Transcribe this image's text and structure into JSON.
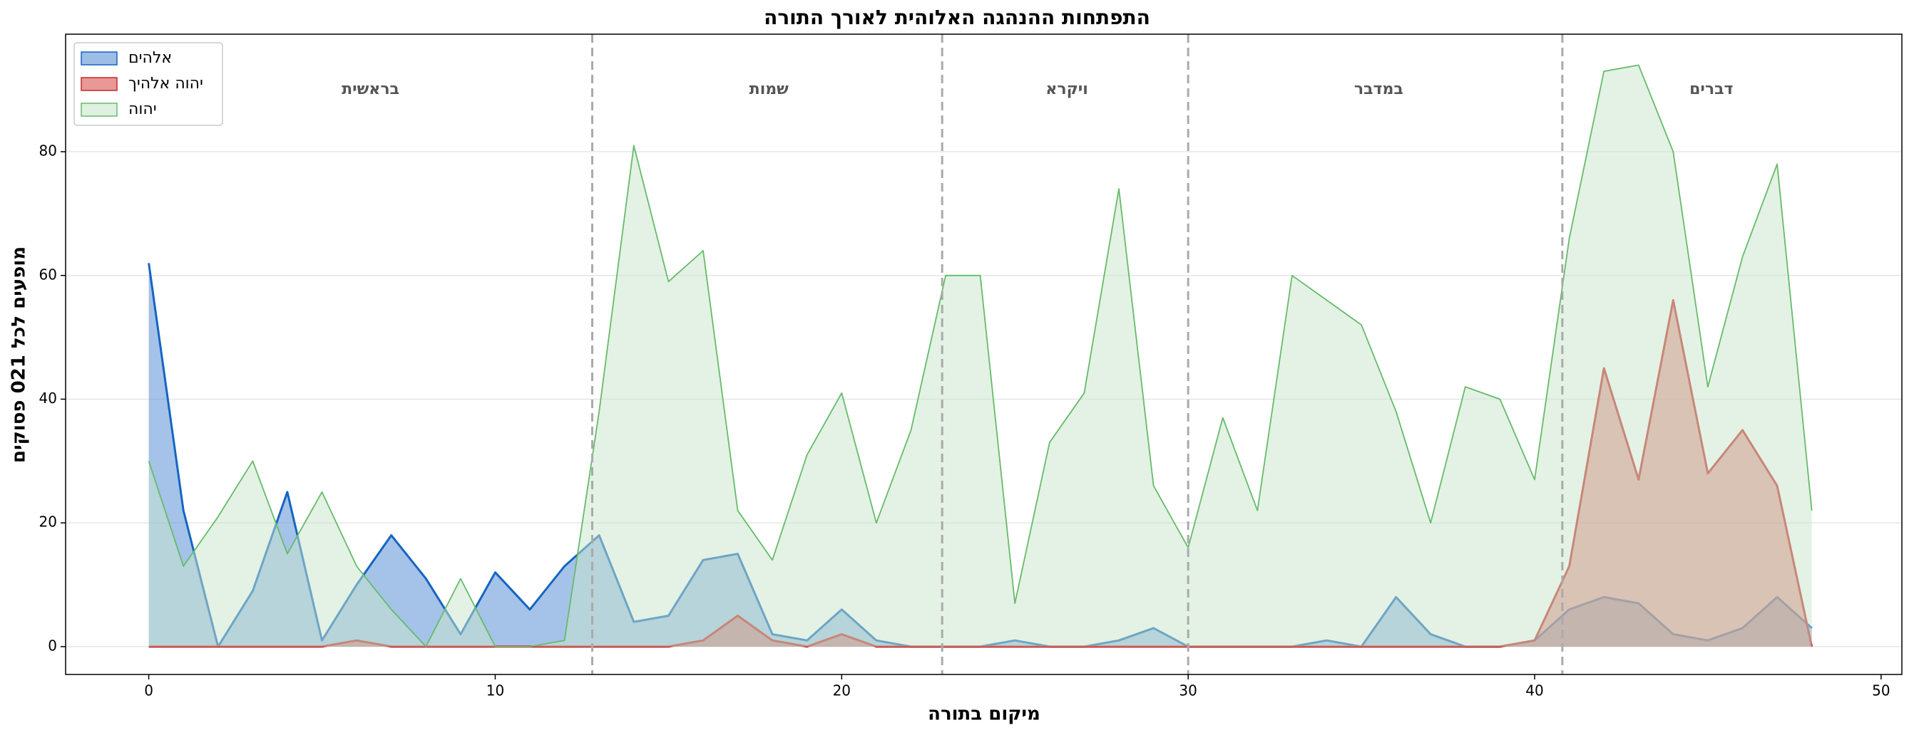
{
  "chart_data": {
    "type": "area",
    "title": "התפתחות ההנהגה האלוהית לאורך התורה",
    "xlabel": "מיקום בתורה",
    "ylabel": "מופעים לכל 021 פסוקים",
    "x": [
      0,
      1,
      2,
      3,
      4,
      5,
      6,
      7,
      8,
      9,
      10,
      11,
      12,
      13,
      14,
      15,
      16,
      17,
      18,
      19,
      20,
      21,
      22,
      23,
      24,
      25,
      26,
      27,
      28,
      29,
      30,
      31,
      32,
      33,
      34,
      35,
      36,
      37,
      38,
      39,
      40,
      41,
      42,
      43,
      44,
      45,
      46,
      47,
      48
    ],
    "series": [
      {
        "name": "אלהים",
        "color": "#1565c0",
        "fill": "#5b8fd6",
        "values": [
          62,
          22,
          0,
          9,
          25,
          1,
          10,
          18,
          11,
          2,
          12,
          6,
          13,
          18,
          4,
          5,
          14,
          15,
          2,
          1,
          6,
          1,
          0,
          0,
          0,
          1,
          0,
          0,
          1,
          3,
          0,
          0,
          0,
          0,
          1,
          0,
          8,
          2,
          0,
          0,
          1,
          6,
          8,
          7,
          2,
          1,
          3,
          8,
          3
        ]
      },
      {
        "name": "יהוה אלהיך",
        "color": "#c62828",
        "fill": "#d9534f",
        "values": [
          0,
          0,
          0,
          0,
          0,
          0,
          1,
          0,
          0,
          0,
          0,
          0,
          0,
          0,
          0,
          0,
          1,
          5,
          1,
          0,
          2,
          0,
          0,
          0,
          0,
          0,
          0,
          0,
          0,
          0,
          0,
          0,
          0,
          0,
          0,
          0,
          0,
          0,
          0,
          0,
          1,
          13,
          45,
          27,
          56,
          28,
          35,
          26,
          0
        ]
      },
      {
        "name": "יהוה",
        "color": "#66bb6a",
        "fill": "#c8e6c9",
        "values": [
          30,
          13,
          21,
          30,
          15,
          25,
          13,
          6,
          0,
          11,
          0,
          0,
          1,
          38,
          81,
          59,
          64,
          22,
          14,
          31,
          41,
          20,
          35,
          60,
          60,
          7,
          33,
          41,
          74,
          26,
          16,
          37,
          22,
          60,
          56,
          52,
          38,
          20,
          42,
          40,
          27,
          66,
          93,
          94,
          80,
          42,
          63,
          78,
          22
        ]
      }
    ],
    "dividers": [
      12.8,
      22.9,
      30.0,
      40.8
    ],
    "annotations": [
      {
        "text": "בראשית",
        "x": 6.4,
        "y": 90
      },
      {
        "text": "שמות",
        "x": 17.9,
        "y": 90
      },
      {
        "text": "ויקרא",
        "x": 26.5,
        "y": 90
      },
      {
        "text": "במדבר",
        "x": 35.5,
        "y": 90
      },
      {
        "text": "דברים",
        "x": 45.1,
        "y": 90
      }
    ],
    "xlim": [
      -2.4,
      50.6
    ],
    "ylim": [
      -4.5,
      99
    ],
    "xticks": [
      0,
      10,
      20,
      30,
      40,
      50
    ],
    "yticks": [
      0,
      20,
      40,
      60,
      80
    ],
    "grid": true,
    "legend": "upper left"
  }
}
